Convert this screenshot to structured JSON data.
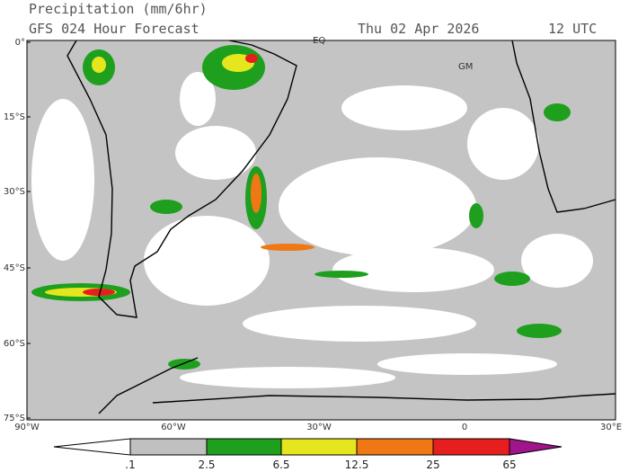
{
  "header": {
    "title": "Precipitation (mm/6hr)",
    "subtitle": "GFS 024 Hour Forecast",
    "date": "Thu 02 Apr 2026",
    "time": "12 UTC"
  },
  "map": {
    "lat_labels": [
      "0°",
      "15°S",
      "30°S",
      "45°S",
      "60°S",
      "75°S"
    ],
    "lon_labels": [
      "90°W",
      "60°W",
      "30°W",
      "0",
      "30°E"
    ],
    "place_labels": [
      "EQ",
      "GM"
    ]
  },
  "colorbar": {
    "labels": [
      ".1",
      "2.5",
      "6.5",
      "12.5",
      "25",
      "65"
    ],
    "colors": [
      "#ffffff",
      "#c0c0c0",
      "#1ea01e",
      "#e6e61e",
      "#f07814",
      "#e61e1e",
      "#a0148c"
    ]
  }
}
